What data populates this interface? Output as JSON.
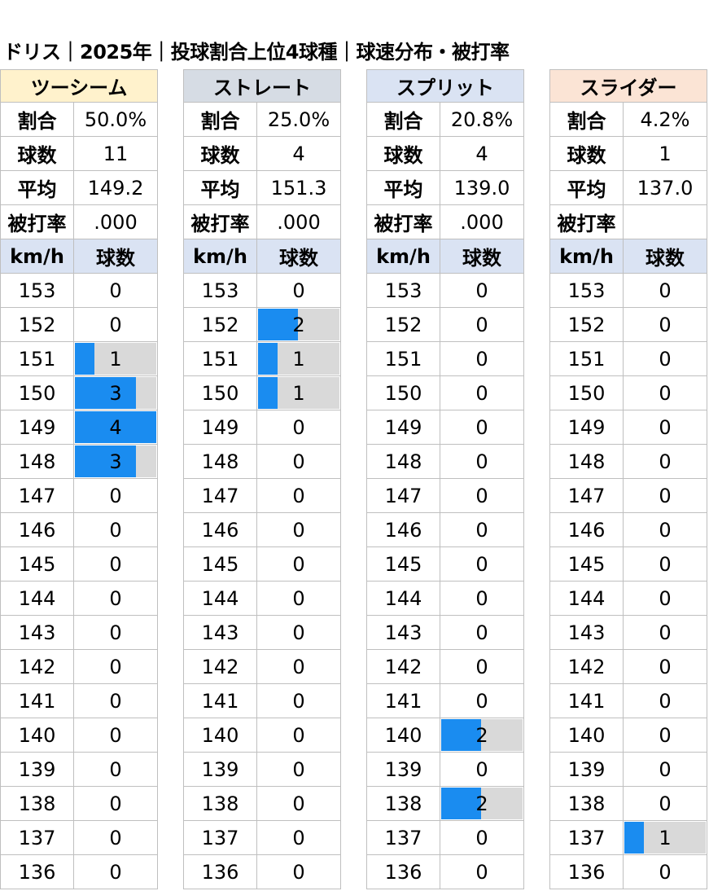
{
  "title": "ドリス｜2025年｜投球割合上位4球種｜球速分布・被打率",
  "labels": {
    "ratio": "割合",
    "count": "球数",
    "avg": "平均",
    "ba": "被打率",
    "kmh": "km/h",
    "pitches": "球数"
  },
  "speeds": [
    "153",
    "152",
    "151",
    "150",
    "149",
    "148",
    "147",
    "146",
    "145",
    "144",
    "143",
    "142",
    "141",
    "140",
    "139",
    "138",
    "137",
    "136"
  ],
  "panels": [
    {
      "name": "ツーシーム",
      "header_color": "#fff2cc",
      "ratio": "50.0%",
      "count": "11",
      "avg": "149.2",
      "ba": ".000",
      "max": 4,
      "dist": [
        0,
        0,
        1,
        3,
        4,
        3,
        0,
        0,
        0,
        0,
        0,
        0,
        0,
        0,
        0,
        0,
        0,
        0
      ]
    },
    {
      "name": "ストレート",
      "header_color": "#d6dce4",
      "ratio": "25.0%",
      "count": "4",
      "avg": "151.3",
      "ba": ".000",
      "max": 4,
      "dist": [
        0,
        2,
        1,
        1,
        0,
        0,
        0,
        0,
        0,
        0,
        0,
        0,
        0,
        0,
        0,
        0,
        0,
        0
      ]
    },
    {
      "name": "スプリット",
      "header_color": "#dae3f3",
      "ratio": "20.8%",
      "count": "4",
      "avg": "139.0",
      "ba": ".000",
      "max": 4,
      "dist": [
        0,
        0,
        0,
        0,
        0,
        0,
        0,
        0,
        0,
        0,
        0,
        0,
        0,
        2,
        0,
        2,
        0,
        0
      ]
    },
    {
      "name": "スライダー",
      "header_color": "#fbe4d5",
      "ratio": "4.2%",
      "count": "1",
      "avg": "137.0",
      "ba": "",
      "max": 4,
      "dist": [
        0,
        0,
        0,
        0,
        0,
        0,
        0,
        0,
        0,
        0,
        0,
        0,
        0,
        0,
        0,
        0,
        1,
        0
      ]
    }
  ],
  "colors": {
    "bar_fill": "#1a8cf0",
    "bar_track": "#d9d9d9",
    "column_header": "#dae3f3"
  }
}
